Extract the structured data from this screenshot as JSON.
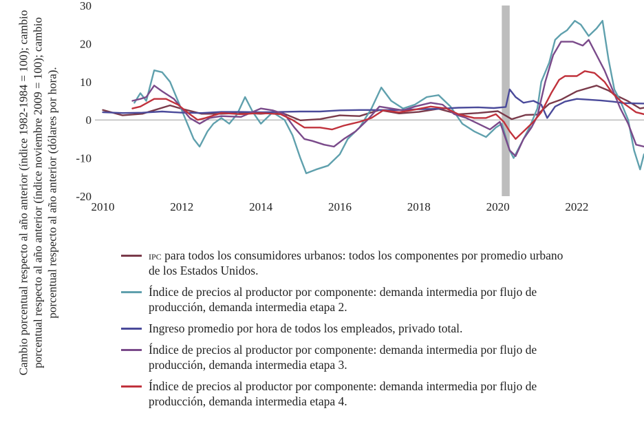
{
  "chart_data": {
    "type": "line",
    "ylabel": "Cambio porcentual respecto al año anterior (índice 1982-1984 = 100); cambio porcentual respecto al año anterior (índice noviembre 2009 = 100); cambio porcentual respecto al año anterior (dólares por hora).",
    "ylim": [
      -20,
      30
    ],
    "yticks": [
      "30",
      "20",
      "10",
      "0",
      "-10",
      "-20"
    ],
    "xlim": [
      2009.8,
      2023.7
    ],
    "xticks": [
      {
        "year": 2010,
        "label": "2010"
      },
      {
        "year": 2012,
        "label": "2012"
      },
      {
        "year": 2014,
        "label": "2014"
      },
      {
        "year": 2016,
        "label": "2016"
      },
      {
        "year": 2018,
        "label": "2018"
      },
      {
        "year": 2020,
        "label": "2020"
      },
      {
        "year": 2022,
        "label": "2022"
      }
    ],
    "recession": {
      "start": 2020.1,
      "end": 2020.3
    },
    "series": [
      {
        "name": "cpi",
        "color": "#7a3a4a",
        "label_sc": "ipc",
        "label_rest": " para todos los consumidores urbanos: todos los componentes por promedio urbano de los Estados Unidos.",
        "points": [
          [
            2010.0,
            2.6
          ],
          [
            2010.5,
            1.2
          ],
          [
            2011.0,
            1.6
          ],
          [
            2011.7,
            3.8
          ],
          [
            2012.0,
            2.9
          ],
          [
            2012.5,
            1.6
          ],
          [
            2013.0,
            1.6
          ],
          [
            2013.5,
            1.8
          ],
          [
            2014.0,
            1.6
          ],
          [
            2014.5,
            2.0
          ],
          [
            2015.0,
            -0.1
          ],
          [
            2015.5,
            0.2
          ],
          [
            2016.0,
            1.2
          ],
          [
            2016.5,
            1.0
          ],
          [
            2017.0,
            2.6
          ],
          [
            2017.5,
            1.7
          ],
          [
            2018.0,
            2.1
          ],
          [
            2018.5,
            2.9
          ],
          [
            2019.0,
            1.5
          ],
          [
            2019.5,
            1.8
          ],
          [
            2020.0,
            2.3
          ],
          [
            2020.35,
            0.2
          ],
          [
            2020.7,
            1.3
          ],
          [
            2021.0,
            1.4
          ],
          [
            2021.3,
            4.2
          ],
          [
            2021.6,
            5.3
          ],
          [
            2022.0,
            7.5
          ],
          [
            2022.5,
            9.0
          ],
          [
            2022.8,
            7.7
          ],
          [
            2023.0,
            6.4
          ],
          [
            2023.3,
            4.9
          ],
          [
            2023.6,
            3.0
          ],
          [
            2023.7,
            3.2
          ]
        ]
      },
      {
        "name": "ppi2",
        "color": "#5fa0ad",
        "label_sc": "",
        "label_rest": "Índice de precios al productor por componente: demanda intermedia por flujo de producción, demanda intermedia etapa 2.",
        "points": [
          [
            2010.8,
            4.5
          ],
          [
            2010.95,
            7.0
          ],
          [
            2011.1,
            5.0
          ],
          [
            2011.3,
            13.0
          ],
          [
            2011.5,
            12.5
          ],
          [
            2011.7,
            10.0
          ],
          [
            2011.9,
            5.0
          ],
          [
            2012.1,
            0.0
          ],
          [
            2012.3,
            -5.0
          ],
          [
            2012.45,
            -7.0
          ],
          [
            2012.65,
            -3.0
          ],
          [
            2012.8,
            -1.0
          ],
          [
            2013.0,
            0.5
          ],
          [
            2013.2,
            -1.0
          ],
          [
            2013.4,
            1.5
          ],
          [
            2013.6,
            6.0
          ],
          [
            2013.8,
            2.0
          ],
          [
            2014.0,
            -1.0
          ],
          [
            2014.3,
            2.0
          ],
          [
            2014.6,
            0.0
          ],
          [
            2014.8,
            -4.0
          ],
          [
            2015.0,
            -10.0
          ],
          [
            2015.15,
            -14.0
          ],
          [
            2015.4,
            -13.0
          ],
          [
            2015.7,
            -12.0
          ],
          [
            2016.0,
            -9.0
          ],
          [
            2016.2,
            -5.0
          ],
          [
            2016.5,
            -2.0
          ],
          [
            2016.8,
            3.0
          ],
          [
            2017.05,
            8.5
          ],
          [
            2017.3,
            5.0
          ],
          [
            2017.6,
            3.0
          ],
          [
            2017.9,
            4.0
          ],
          [
            2018.2,
            6.0
          ],
          [
            2018.5,
            6.5
          ],
          [
            2018.8,
            3.5
          ],
          [
            2019.1,
            -1.0
          ],
          [
            2019.4,
            -3.0
          ],
          [
            2019.7,
            -4.5
          ],
          [
            2019.95,
            -2.0
          ],
          [
            2020.1,
            -1.0
          ],
          [
            2020.3,
            -8.0
          ],
          [
            2020.4,
            -10.0
          ],
          [
            2020.6,
            -6.0
          ],
          [
            2020.8,
            -2.0
          ],
          [
            2021.0,
            3.0
          ],
          [
            2021.1,
            10.0
          ],
          [
            2021.3,
            15.0
          ],
          [
            2021.45,
            21.0
          ],
          [
            2021.6,
            22.5
          ],
          [
            2021.75,
            23.5
          ],
          [
            2021.95,
            26.0
          ],
          [
            2022.1,
            25.0
          ],
          [
            2022.3,
            22.0
          ],
          [
            2022.5,
            24.0
          ],
          [
            2022.65,
            26.0
          ],
          [
            2022.8,
            16.0
          ],
          [
            2022.95,
            8.0
          ],
          [
            2023.1,
            5.0
          ],
          [
            2023.3,
            0.0
          ],
          [
            2023.45,
            -8.0
          ],
          [
            2023.6,
            -13.0
          ],
          [
            2023.7,
            -9.0
          ]
        ]
      },
      {
        "name": "ahe",
        "color": "#4a4a9a",
        "label_sc": "",
        "label_rest": "Ingreso promedio por hora de todos los empleados, privado total.",
        "points": [
          [
            2010.0,
            2.0
          ],
          [
            2010.5,
            1.8
          ],
          [
            2011.0,
            1.9
          ],
          [
            2011.5,
            2.2
          ],
          [
            2012.0,
            1.9
          ],
          [
            2012.5,
            1.8
          ],
          [
            2013.0,
            2.1
          ],
          [
            2013.5,
            2.1
          ],
          [
            2014.0,
            2.0
          ],
          [
            2014.5,
            2.1
          ],
          [
            2015.0,
            2.2
          ],
          [
            2015.5,
            2.2
          ],
          [
            2016.0,
            2.5
          ],
          [
            2016.5,
            2.6
          ],
          [
            2017.0,
            2.6
          ],
          [
            2017.5,
            2.6
          ],
          [
            2018.0,
            2.8
          ],
          [
            2018.5,
            2.9
          ],
          [
            2019.0,
            3.2
          ],
          [
            2019.5,
            3.3
          ],
          [
            2019.9,
            3.1
          ],
          [
            2020.2,
            3.4
          ],
          [
            2020.3,
            8.0
          ],
          [
            2020.45,
            6.0
          ],
          [
            2020.65,
            4.5
          ],
          [
            2020.9,
            5.0
          ],
          [
            2021.1,
            4.0
          ],
          [
            2021.25,
            0.5
          ],
          [
            2021.45,
            3.5
          ],
          [
            2021.7,
            4.8
          ],
          [
            2022.0,
            5.5
          ],
          [
            2022.3,
            5.3
          ],
          [
            2022.6,
            5.1
          ],
          [
            2022.9,
            4.8
          ],
          [
            2023.2,
            4.4
          ],
          [
            2023.7,
            4.3
          ]
        ]
      },
      {
        "name": "ppi3",
        "color": "#7a4a8a",
        "label_sc": "",
        "label_rest": "Índice de precios al productor por componente: demanda intermedia por flujo de producción, demanda intermedia etapa 3.",
        "points": [
          [
            2010.75,
            5.0
          ],
          [
            2010.95,
            5.5
          ],
          [
            2011.1,
            6.0
          ],
          [
            2011.3,
            9.0
          ],
          [
            2011.5,
            7.5
          ],
          [
            2011.8,
            5.5
          ],
          [
            2012.0,
            3.0
          ],
          [
            2012.2,
            0.5
          ],
          [
            2012.45,
            -1.0
          ],
          [
            2012.7,
            0.5
          ],
          [
            2013.0,
            1.0
          ],
          [
            2013.5,
            0.8
          ],
          [
            2014.0,
            3.0
          ],
          [
            2014.3,
            2.5
          ],
          [
            2014.6,
            1.5
          ],
          [
            2014.85,
            -2.0
          ],
          [
            2015.1,
            -5.0
          ],
          [
            2015.3,
            -5.5
          ],
          [
            2015.6,
            -6.5
          ],
          [
            2015.85,
            -7.0
          ],
          [
            2016.1,
            -5.0
          ],
          [
            2016.4,
            -3.0
          ],
          [
            2016.7,
            0.0
          ],
          [
            2017.0,
            3.5
          ],
          [
            2017.3,
            3.0
          ],
          [
            2017.6,
            2.5
          ],
          [
            2017.9,
            3.5
          ],
          [
            2018.3,
            4.5
          ],
          [
            2018.6,
            4.0
          ],
          [
            2018.9,
            1.5
          ],
          [
            2019.2,
            0.5
          ],
          [
            2019.5,
            -1.0
          ],
          [
            2019.8,
            -2.5
          ],
          [
            2020.05,
            -0.5
          ],
          [
            2020.3,
            -8.0
          ],
          [
            2020.45,
            -9.5
          ],
          [
            2020.65,
            -5.0
          ],
          [
            2020.85,
            -2.0
          ],
          [
            2021.0,
            1.0
          ],
          [
            2021.2,
            10.0
          ],
          [
            2021.4,
            17.0
          ],
          [
            2021.6,
            20.5
          ],
          [
            2021.9,
            20.5
          ],
          [
            2022.15,
            19.5
          ],
          [
            2022.3,
            21.0
          ],
          [
            2022.5,
            17.0
          ],
          [
            2022.7,
            13.0
          ],
          [
            2022.9,
            8.0
          ],
          [
            2023.1,
            3.0
          ],
          [
            2023.3,
            -1.0
          ],
          [
            2023.5,
            -6.5
          ],
          [
            2023.7,
            -7.0
          ]
        ]
      },
      {
        "name": "ppi4",
        "color": "#c0323c",
        "label_sc": "",
        "label_rest": "Índice de precios al productor por componente: demanda intermedia por flujo de producción, demanda intermedia etapa 4.",
        "points": [
          [
            2010.75,
            3.0
          ],
          [
            2010.95,
            3.5
          ],
          [
            2011.3,
            5.5
          ],
          [
            2011.6,
            5.5
          ],
          [
            2011.9,
            4.0
          ],
          [
            2012.2,
            1.5
          ],
          [
            2012.4,
            0.0
          ],
          [
            2012.6,
            0.5
          ],
          [
            2013.0,
            1.8
          ],
          [
            2013.5,
            1.5
          ],
          [
            2014.0,
            1.8
          ],
          [
            2014.5,
            1.5
          ],
          [
            2014.8,
            0.0
          ],
          [
            2015.1,
            -2.0
          ],
          [
            2015.5,
            -2.0
          ],
          [
            2015.8,
            -2.5
          ],
          [
            2016.1,
            -1.5
          ],
          [
            2016.5,
            -0.5
          ],
          [
            2016.8,
            0.5
          ],
          [
            2017.1,
            2.5
          ],
          [
            2017.5,
            2.0
          ],
          [
            2017.8,
            2.5
          ],
          [
            2018.3,
            3.5
          ],
          [
            2018.7,
            3.0
          ],
          [
            2019.0,
            1.5
          ],
          [
            2019.4,
            0.5
          ],
          [
            2019.7,
            0.5
          ],
          [
            2019.95,
            1.5
          ],
          [
            2020.15,
            -0.5
          ],
          [
            2020.3,
            -3.0
          ],
          [
            2020.45,
            -5.0
          ],
          [
            2020.7,
            -2.5
          ],
          [
            2020.9,
            -0.5
          ],
          [
            2021.1,
            2.0
          ],
          [
            2021.35,
            7.0
          ],
          [
            2021.55,
            10.5
          ],
          [
            2021.7,
            11.5
          ],
          [
            2022.0,
            11.5
          ],
          [
            2022.2,
            12.8
          ],
          [
            2022.45,
            12.3
          ],
          [
            2022.7,
            10.0
          ],
          [
            2022.9,
            7.0
          ],
          [
            2023.1,
            5.0
          ],
          [
            2023.3,
            3.5
          ],
          [
            2023.5,
            2.0
          ],
          [
            2023.7,
            1.5
          ]
        ]
      }
    ]
  }
}
